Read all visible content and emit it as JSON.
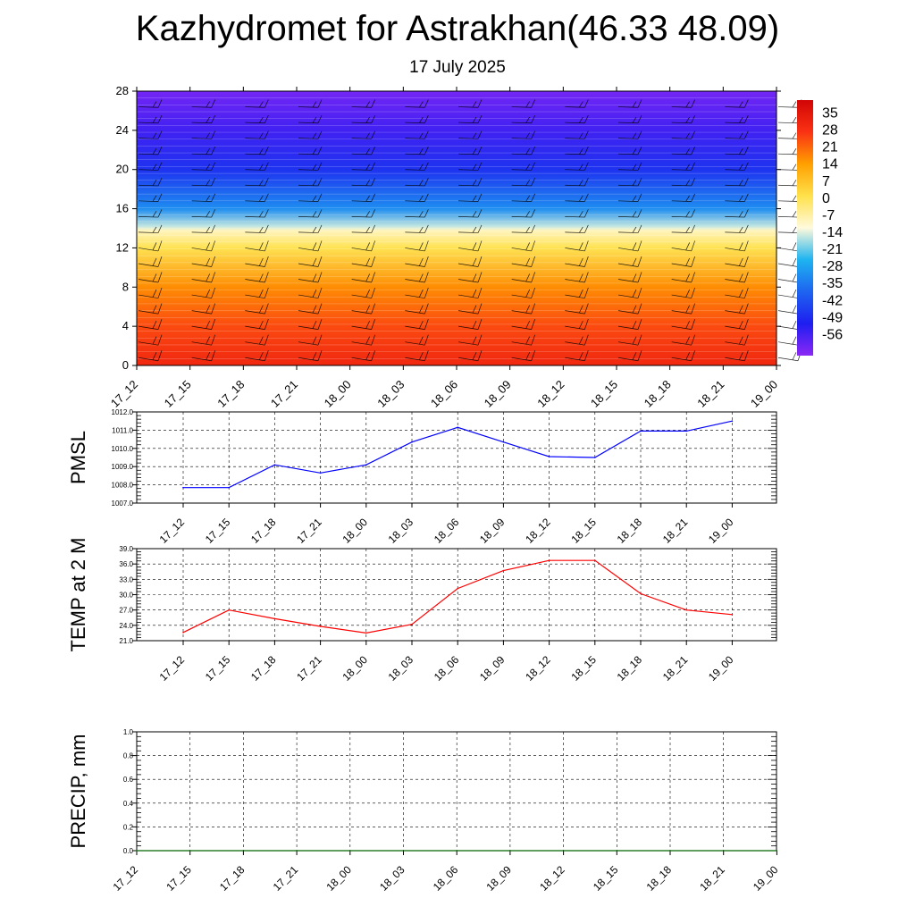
{
  "header": {
    "title": "Kazhydromet for Astrakhan(46.33 48.09)",
    "subtitle": "17 July 2025"
  },
  "chart_data": [
    {
      "type": "heatmap",
      "title": "",
      "x_labels": [
        "17_12",
        "17_15",
        "17_18",
        "17_21",
        "18_00",
        "18_03",
        "18_06",
        "18_09",
        "18_12",
        "18_15",
        "18_18",
        "18_21",
        "19_00"
      ],
      "y_ticks": [
        0,
        4,
        8,
        12,
        16,
        20,
        24,
        28
      ],
      "ylim": [
        0,
        28
      ],
      "colorbar_labels": [
        "35",
        "28",
        "21",
        "14",
        "7",
        "0",
        "-7",
        "-14",
        "-21",
        "-28",
        "-35",
        "-42",
        "-49",
        "-56"
      ],
      "colorbar_range": [
        -63,
        42
      ],
      "colors": [
        "#d10505",
        "#fa3214",
        "#ffa000",
        "#ffe14b",
        "#fffadc",
        "#1eb4f0",
        "#1e64f0",
        "#1e1ef0",
        "#8c28f5"
      ],
      "temperature_profile": {
        "levels": [
          0,
          4,
          8,
          12,
          13.8,
          14.2,
          16,
          20,
          24,
          28
        ],
        "values": [
          32,
          26,
          18,
          2,
          -8,
          -14,
          -30,
          -46,
          -54,
          -60
        ]
      },
      "warm_spot": {
        "center": [
          "18_13",
          0
        ],
        "peak": 40
      },
      "wind_barbs": "present",
      "grid": false
    },
    {
      "type": "line",
      "ylabel": "PMSL",
      "xlabel": "",
      "categories": [
        "17_12",
        "17_15",
        "17_18",
        "17_21",
        "18_00",
        "18_03",
        "18_06",
        "18_09",
        "18_12",
        "18_15",
        "18_18",
        "18_21",
        "19_00"
      ],
      "values": [
        1007.85,
        1007.85,
        1009.1,
        1008.65,
        1009.1,
        1010.35,
        1011.15,
        1010.35,
        1009.55,
        1009.5,
        1010.95,
        1010.95,
        1011.5
      ],
      "ylim": [
        1007.0,
        1012.0
      ],
      "y_ticks": [
        "1007.0",
        "1008.0",
        "1009.0",
        "1010.0",
        "1011.0",
        "1012.0"
      ],
      "color": "#0000ff",
      "grid": true
    },
    {
      "type": "line",
      "ylabel": "TEMP at 2 M",
      "xlabel": "",
      "categories": [
        "17_12",
        "17_15",
        "17_18",
        "17_21",
        "18_00",
        "18_03",
        "18_06",
        "18_09",
        "18_12",
        "18_15",
        "18_18",
        "18_21",
        "19_00"
      ],
      "values": [
        22.6,
        27.0,
        25.3,
        23.8,
        22.5,
        24.2,
        31.2,
        34.7,
        36.7,
        36.7,
        30.2,
        27.0,
        26.1
      ],
      "ylim": [
        21.0,
        39.0
      ],
      "y_ticks": [
        "21.0",
        "24.0",
        "27.0",
        "30.0",
        "33.0",
        "36.0",
        "39.0"
      ],
      "color": "#ff0000",
      "grid": true
    },
    {
      "type": "line",
      "ylabel": "PRECIP, mm",
      "xlabel": "",
      "categories": [
        "17_12",
        "17_15",
        "17_18",
        "17_21",
        "18_00",
        "18_03",
        "18_06",
        "18_09",
        "18_12",
        "18_15",
        "18_18",
        "18_21",
        "19_00"
      ],
      "values": [
        0,
        0,
        0,
        0,
        0,
        0,
        0,
        0,
        0,
        0,
        0,
        0,
        0
      ],
      "ylim": [
        0.0,
        1.0
      ],
      "y_ticks": [
        "0.0",
        "0.2",
        "0.4",
        "0.6",
        "0.8",
        "1.0"
      ],
      "color": "#006400",
      "grid": true
    }
  ]
}
